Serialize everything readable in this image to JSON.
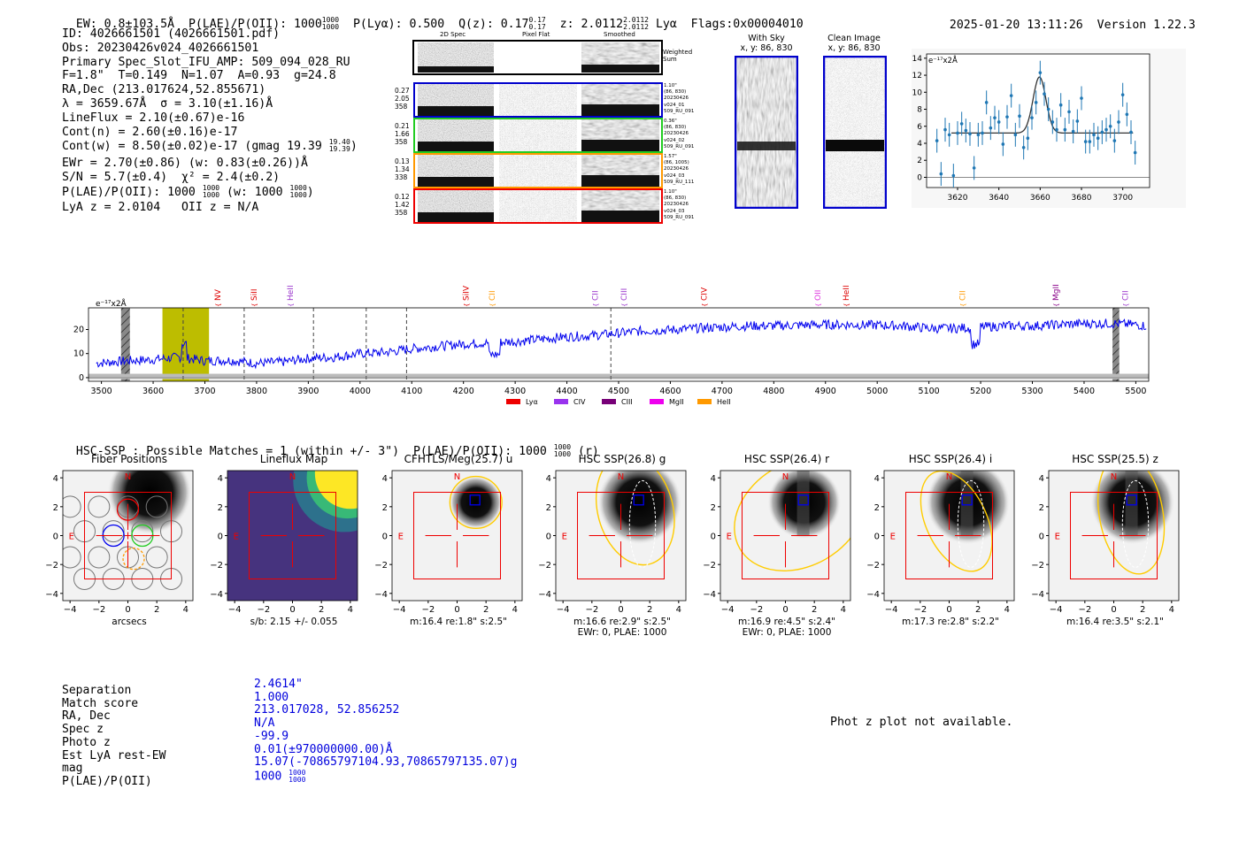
{
  "header": {
    "ew_label": "EW: 0.8±103.5Å",
    "plae_label": "P(LAE)/P(OII): 1000",
    "plae_sup": "1000",
    "plae_sub": "1000",
    "plya_label": "P(Lyα): 0.500",
    "qz_label": "Q(z): 0.17",
    "qz_sup": "0.17",
    "qz_sub": "0.17",
    "z_label": "z: 2.0112",
    "z_sup": "2.0112",
    "z_sub": "2.0112",
    "z_line": "Lyα",
    "flags": "Flags:0x00004010",
    "datetime": "2025-01-20 13:11:26",
    "version": "Version 1.22.3"
  },
  "info": {
    "id": "ID: 4026661501 (4026661501.pdf)",
    "obs": "Obs: 20230426v024_4026661501",
    "primary": "Primary Spec_Slot_IFU_AMP: 509_094_028_RU",
    "fparams": "F=1.8\"  T=0.149  N=1.07  A=0.93  g=24.8",
    "radec": "RA,Dec (213.017624,52.855671)",
    "lambda": "λ = 3659.67Å  σ = 3.10(±1.16)Å",
    "lineflux": "LineFlux = 2.10(±0.67)e-16",
    "contn": "Cont(n) = 2.60(±0.16)e-17",
    "contw": "Cont(w) = 8.50(±0.02)e-17 (gmag 19.39",
    "contw_sup": "19.40",
    "contw_sub": "19.39",
    "contw_close": ")",
    "ewr": "EWr = 2.70(±0.86) (w: 0.83(±0.26))Å",
    "sn": "S/N = 5.7(±0.4)  χ² = 2.4(±0.2)",
    "plae": "P(LAE)/P(OII): 1000",
    "plae_sup": "1000",
    "plae_sub": "1000",
    "plae_w": "(w: 1000",
    "plae_w_sup": "1000",
    "plae_w_sub": "1000",
    "plae_w_close": ")",
    "lya": "LyA z = 2.0104   OII z = N/A"
  },
  "cutouts": {
    "col_labels": [
      "2D Spec",
      "Pixel Flat",
      "Smoothed"
    ],
    "weighted": "Weighted Sum",
    "rows": [
      {
        "left": [
          "0.27",
          "2.05",
          "358"
        ],
        "right": [
          "1.10\"",
          "(86, 830)",
          "20230426",
          "v024_01",
          "509_RU_091"
        ],
        "color": "#0000cc"
      },
      {
        "left": [
          "0.21",
          "1.66",
          "358"
        ],
        "right": [
          "0.36\"",
          "(86, 830)",
          "20230426",
          "v024_02",
          "509_RU_091"
        ],
        "color": "#22cc22"
      },
      {
        "left": [
          "0.13",
          "1.34",
          "338"
        ],
        "right": [
          "1.57\"",
          "(86, 1005)",
          "20230426",
          "v024_03",
          "509_RU_111"
        ],
        "color": "#ff9900"
      },
      {
        "left": [
          "0.12",
          "1.42",
          "358"
        ],
        "right": [
          "1.10\"",
          "(86, 830)",
          "20230426",
          "v024_03",
          "509_RU_091"
        ],
        "color": "#ee0000"
      }
    ],
    "withsky_title": "With Sky",
    "withsky_xy": "x, y: 86, 830",
    "clean_title": "Clean Image",
    "clean_xy": "x, y: 86, 830"
  },
  "fit_chart": {
    "type": "scatter",
    "unit_label": "e⁻¹⁷x2Å",
    "xlim": [
      3605,
      3713
    ],
    "ylim": [
      -1.2,
      14.5
    ],
    "xticks": [
      3620,
      3640,
      3660,
      3680,
      3700
    ],
    "yticks": [
      0,
      2,
      4,
      6,
      8,
      10,
      12,
      14
    ],
    "x": [
      3610,
      3612,
      3614,
      3616,
      3618,
      3620,
      3622,
      3624,
      3626,
      3628,
      3630,
      3632,
      3634,
      3636,
      3638,
      3640,
      3642,
      3644,
      3646,
      3648,
      3650,
      3652,
      3654,
      3656,
      3658,
      3660,
      3662,
      3664,
      3666,
      3668,
      3670,
      3672,
      3674,
      3676,
      3678,
      3680,
      3682,
      3684,
      3686,
      3688,
      3690,
      3692,
      3694,
      3696,
      3698,
      3700,
      3702,
      3704,
      3706
    ],
    "y": [
      4.3,
      0.4,
      5.6,
      5.0,
      0.2,
      5.2,
      6.3,
      5.5,
      5.1,
      1.1,
      5.0,
      5.2,
      8.8,
      5.8,
      7.0,
      6.5,
      3.9,
      7.1,
      9.6,
      5.0,
      7.2,
      3.5,
      4.6,
      7.0,
      8.8,
      12.3,
      9.8,
      8.0,
      6.5,
      5.6,
      8.5,
      5.6,
      7.7,
      5.4,
      6.6,
      9.3,
      4.2,
      4.2,
      5.0,
      4.6,
      5.3,
      5.6,
      6.0,
      4.3,
      6.5,
      9.7,
      7.4,
      5.3,
      2.9
    ],
    "err": [
      1.4,
      1.4,
      1.4,
      1.4,
      1.4,
      1.4,
      1.4,
      1.4,
      1.4,
      1.4,
      1.4,
      1.4,
      1.4,
      1.4,
      1.4,
      1.4,
      1.4,
      1.4,
      1.4,
      1.4,
      1.4,
      1.4,
      1.4,
      1.4,
      1.4,
      1.4,
      1.4,
      1.4,
      1.4,
      1.4,
      1.4,
      1.4,
      1.4,
      1.4,
      1.4,
      1.4,
      1.4,
      1.4,
      1.4,
      1.4,
      1.4,
      1.4,
      1.4,
      1.4,
      1.4,
      1.4,
      1.4,
      1.4,
      1.4
    ],
    "model": {
      "baseline": 5.2,
      "center": 3659.67,
      "sigma": 3.1,
      "amp": 6.6
    }
  },
  "chart_data": {
    "type": "line",
    "title": "",
    "unit_label": "e⁻¹⁷x2Å",
    "xlabel": "",
    "ylabel": "",
    "xlim": [
      3475,
      5525
    ],
    "ylim": [
      -1.5,
      29
    ],
    "xticks": [
      3500,
      3600,
      3700,
      3800,
      3900,
      4000,
      4100,
      4200,
      4300,
      4400,
      4500,
      4600,
      4700,
      4800,
      4900,
      5000,
      5100,
      5200,
      5300,
      5400,
      5500
    ],
    "yticks": [
      0,
      10,
      20
    ],
    "series": [
      {
        "name": "spectrum",
        "x": [
          3490,
          3550,
          3600,
          3650,
          3700,
          3750,
          3800,
          3850,
          3900,
          3950,
          4000,
          4050,
          4100,
          4150,
          4200,
          4250,
          4300,
          4350,
          4400,
          4450,
          4500,
          4550,
          4600,
          4650,
          4700,
          4750,
          4800,
          4850,
          4900,
          4950,
          5000,
          5050,
          5100,
          5150,
          5200,
          5250,
          5300,
          5350,
          5400,
          5450,
          5500,
          5520
        ],
        "values": [
          6,
          7,
          7.5,
          8.5,
          7,
          7.2,
          6,
          6.5,
          8,
          8.5,
          10,
          10.5,
          12,
          13,
          14,
          14.5,
          15,
          16,
          17,
          17.5,
          18.5,
          19.5,
          19.8,
          20.5,
          21,
          21.5,
          21.5,
          21.8,
          22,
          22,
          21.8,
          21.5,
          20.5,
          20.5,
          21,
          21.5,
          21.5,
          22,
          22.5,
          22.5,
          22,
          21.5
        ]
      },
      {
        "name": "noise",
        "x": [
          3490,
          5520
        ],
        "values": [
          0.6,
          0.6
        ]
      }
    ],
    "dashed_lines": [
      3658,
      3776,
      3910,
      4012,
      4090,
      4485
    ],
    "highlight": {
      "x0": 3618,
      "x1": 3708,
      "color": "#bdbd00"
    },
    "hatched": [
      {
        "x0": 3538,
        "x1": 3555
      },
      {
        "x0": 5455,
        "x1": 5468
      }
    ],
    "line_labels": [
      {
        "text": "NV",
        "x": 3725,
        "color": "#dd0000"
      },
      {
        "text": "SiII",
        "x": 3795,
        "color": "#dd0000"
      },
      {
        "text": "HeII",
        "x": 3865,
        "color": "#9933cc"
      },
      {
        "text": "SiIV",
        "x": 4205,
        "color": "#dd0000"
      },
      {
        "text": "CII",
        "x": 4255,
        "color": "#ff9900"
      },
      {
        "text": "CII",
        "x": 4455,
        "color": "#9933cc"
      },
      {
        "text": "CIII",
        "x": 4510,
        "color": "#9933cc"
      },
      {
        "text": "CIV",
        "x": 4665,
        "color": "#dd0000"
      },
      {
        "text": "OII",
        "x": 4885,
        "color": "#dd33dd"
      },
      {
        "text": "HeII",
        "x": 4940,
        "color": "#dd0000"
      },
      {
        "text": "CII",
        "x": 5165,
        "color": "#ff9900"
      },
      {
        "text": "MgII",
        "x": 5345,
        "color": "#880088"
      },
      {
        "text": "CII",
        "x": 5480,
        "color": "#9933cc"
      }
    ],
    "legend": [
      {
        "name": "Lyα",
        "color": "#ee0000"
      },
      {
        "name": "CIV",
        "color": "#9933ee"
      },
      {
        "name": "CIII",
        "color": "#770077"
      },
      {
        "name": "MgII",
        "color": "#ee00ee"
      },
      {
        "name": "HeII",
        "color": "#ff9900"
      }
    ]
  },
  "hsc": {
    "title": "HSC-SSP : Possible Matches = 1 (within +/- 3\")  P(LAE)/P(OII): 1000",
    "title_sup": "1000",
    "title_sub": "1000",
    "title_tail": "(r)",
    "panels": [
      {
        "title": "Fiber Positions",
        "xlabel": "arcsecs",
        "sub2": "",
        "kind": "fiber"
      },
      {
        "title": "Lineflux Map",
        "xlabel": "s/b: 2.15 +/- 0.055",
        "sub2": "",
        "kind": "lineflux"
      },
      {
        "title": "CFHTLS/Meg(25.7) u",
        "xlabel": "m:16.4  re:1.8\"  s:2.5\"",
        "sub2": "",
        "kind": "u"
      },
      {
        "title": "HSC SSP(26.8) g",
        "xlabel": "m:16.6  re:2.9\"  s:2.5\"",
        "sub2": "EWr: 0, PLAE: 1000",
        "kind": "g"
      },
      {
        "title": "HSC SSP(26.4) r",
        "xlabel": "m:16.9  re:4.5\"  s:2.4\"",
        "sub2": "EWr: 0, PLAE: 1000",
        "kind": "r"
      },
      {
        "title": "HSC SSP(26.4) i",
        "xlabel": "m:17.3  re:2.8\"  s:2.2\"",
        "sub2": "",
        "kind": "i"
      },
      {
        "title": "HSC SSP(25.5) z",
        "xlabel": "m:16.4  re:3.5\"  s:2.1\"",
        "sub2": "",
        "kind": "z"
      }
    ],
    "ticks": [
      -4,
      -2,
      0,
      2,
      4
    ],
    "compass_n": "N",
    "compass_e": "E"
  },
  "summary": {
    "labels": [
      "Separation",
      "Match score",
      "RA, Dec",
      "Spec z",
      "Photo z",
      "Est LyA rest-EW",
      "mag",
      "P(LAE)/P(OII)"
    ],
    "values": [
      "2.4614\"",
      "1.000",
      "213.017028, 52.856252",
      "N/A",
      "-99.9",
      "0.01(±970000000.00)Å",
      "15.07(-70865797104.93,70865797135.07)g",
      "1000"
    ],
    "plae_sup": "1000",
    "plae_sub": "1000",
    "photz_msg": "Phot z plot not available."
  }
}
